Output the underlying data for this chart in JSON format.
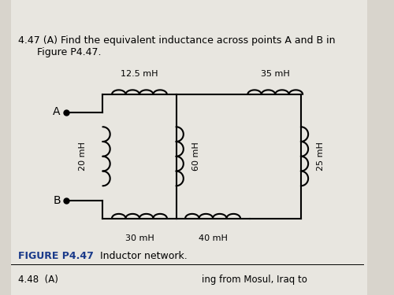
{
  "bg_color": "#d8d4cc",
  "page_color": "#e8e6e0",
  "title_text": "4.47 (A) Find the equivalent inductance across points A and B in\n      Figure P4.47.",
  "figure_label": "FIGURE P4.47",
  "figure_caption": "  Inductor network.",
  "bottom_text": "4.48  (A)",
  "bottom_text2": "ing from Mosul, Iraq to",
  "inductors": {
    "top_left": "12.5 mH",
    "top_right": "35 mH",
    "left": "20 mH",
    "middle": "60 mH",
    "right": "25 mH",
    "bottom_left": "30 mH",
    "bottom_right": "40 mH"
  },
  "node_A": "A",
  "node_B": "B"
}
